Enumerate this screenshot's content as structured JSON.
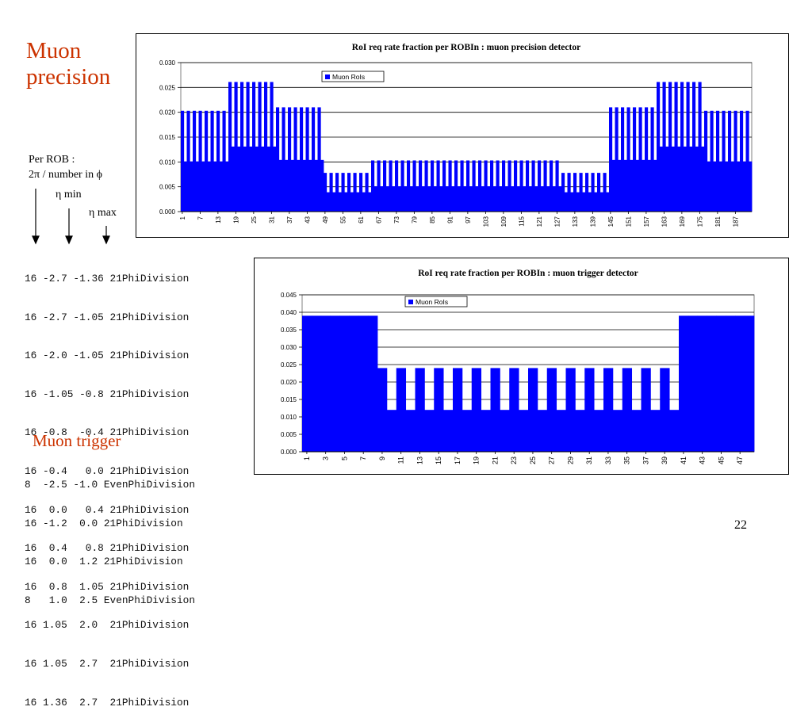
{
  "headings": {
    "precision": "Muon precision",
    "trigger": "Muon trigger"
  },
  "notes": {
    "per_rob": "Per ROB :",
    "phi_div": "2π / number in ϕ",
    "eta_min": "η min",
    "eta_max": "η max"
  },
  "precision_config": [
    "16 -2.7 -1.36 21PhiDivision",
    "16 -2.7 -1.05 21PhiDivision",
    "16 -2.0 -1.05 21PhiDivision",
    "16 -1.05 -0.8 21PhiDivision",
    "16 -0.8  -0.4 21PhiDivision",
    "16 -0.4   0.0 21PhiDivision",
    "16  0.0   0.4 21PhiDivision",
    "16  0.4   0.8 21PhiDivision",
    "16  0.8  1.05 21PhiDivision",
    "16 1.05  2.0  21PhiDivision",
    "16 1.05  2.7  21PhiDivision",
    "16 1.36  2.7  21PhiDivision"
  ],
  "trigger_config": [
    "8  -2.5 -1.0 EvenPhiDivision",
    "16 -1.2  0.0 21PhiDivision",
    "16  0.0  1.2 21PhiDivision",
    "8   1.0  2.5 EvenPhiDivision"
  ],
  "slide_number": "22",
  "colors": {
    "heading": "#cc3300",
    "bar": "#0000ff"
  },
  "chart_data": [
    {
      "type": "bar",
      "title": "RoI req rate fraction per ROBIn : muon precision detector",
      "legend": "Muon RoIs",
      "legend_position": "top-left",
      "ylim": [
        0,
        0.03
      ],
      "yticks": [
        "0.000",
        "0.005",
        "0.010",
        "0.015",
        "0.020",
        "0.025",
        "0.030"
      ],
      "n_categories": 192,
      "xtick_labels": [
        "1",
        "7",
        "13",
        "19",
        "25",
        "31",
        "37",
        "43",
        "49",
        "55",
        "61",
        "67",
        "73",
        "79",
        "85",
        "91",
        "97",
        "103",
        "109",
        "115",
        "121",
        "127",
        "133",
        "139",
        "145",
        "151",
        "157",
        "163",
        "169",
        "175",
        "181",
        "187"
      ],
      "xtick_every": 6,
      "segments": [
        {
          "from": 1,
          "to": 16,
          "pattern": [
            0.0203,
            0.0101
          ]
        },
        {
          "from": 17,
          "to": 32,
          "pattern": [
            0.0261,
            0.0131
          ]
        },
        {
          "from": 33,
          "to": 48,
          "pattern": [
            0.021,
            0.0104
          ]
        },
        {
          "from": 49,
          "to": 64,
          "pattern": [
            0.0078,
            0.0039
          ]
        },
        {
          "from": 65,
          "to": 128,
          "pattern": [
            0.0103,
            0.0051
          ]
        },
        {
          "from": 129,
          "to": 144,
          "pattern": [
            0.0078,
            0.0039
          ]
        },
        {
          "from": 145,
          "to": 160,
          "pattern": [
            0.021,
            0.0104
          ]
        },
        {
          "from": 161,
          "to": 176,
          "pattern": [
            0.0261,
            0.0131
          ]
        },
        {
          "from": 177,
          "to": 192,
          "pattern": [
            0.0203,
            0.0101
          ]
        }
      ]
    },
    {
      "type": "bar",
      "title": "RoI req rate fraction per ROBIn : muon trigger detector",
      "legend": "Muon RoIs",
      "legend_position": "top-left",
      "ylim": [
        0,
        0.045
      ],
      "yticks": [
        "0.000",
        "0.005",
        "0.010",
        "0.015",
        "0.020",
        "0.025",
        "0.030",
        "0.035",
        "0.040",
        "0.045"
      ],
      "n_categories": 48,
      "xtick_labels": [
        "1",
        "3",
        "5",
        "7",
        "9",
        "11",
        "13",
        "15",
        "17",
        "19",
        "21",
        "23",
        "25",
        "27",
        "29",
        "31",
        "33",
        "35",
        "37",
        "39",
        "41",
        "43",
        "45",
        "47"
      ],
      "xtick_every": 2,
      "segments": [
        {
          "from": 1,
          "to": 8,
          "pattern": [
            0.039
          ]
        },
        {
          "from": 9,
          "to": 40,
          "pattern": [
            0.024,
            0.012
          ]
        },
        {
          "from": 41,
          "to": 48,
          "pattern": [
            0.039
          ]
        }
      ]
    }
  ]
}
